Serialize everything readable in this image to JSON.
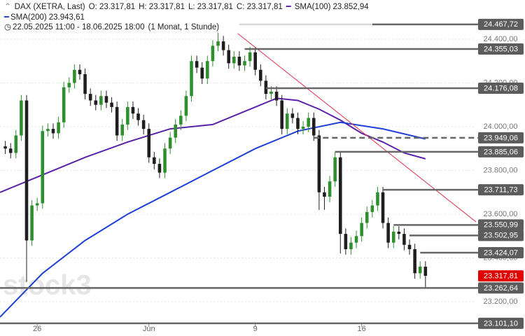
{
  "header": {
    "symbol": "DAX (XETRA, Last)",
    "ohlc": [
      "O: 23.317,81",
      "H: 23.317,81",
      "L: 23.317,81",
      "C: 23.317,81"
    ],
    "sma100": {
      "name": "SMA(100)",
      "value": "23.852,94"
    },
    "sma200": {
      "name": "SMA(200)",
      "value": "23.943,61"
    },
    "range": "22.05.2025 11:00 - 18.06.2025 18:00",
    "interval": "(1 Monat, 1 Stunde)"
  },
  "chart_data": {
    "type": "candlestick",
    "watermark": "stock3",
    "x": [
      0,
      1,
      2,
      3,
      4,
      5,
      6,
      7,
      8,
      9,
      10,
      11,
      12,
      13,
      14,
      15,
      16,
      17,
      18,
      19,
      20,
      21,
      22,
      23,
      24,
      25,
      26,
      27,
      28,
      29,
      30,
      31,
      32,
      33,
      34,
      35,
      36,
      37,
      38,
      39,
      40,
      41,
      42,
      43,
      44,
      45,
      46,
      47,
      48,
      49,
      50,
      51,
      52,
      53,
      54,
      55,
      56,
      57,
      58,
      59,
      60,
      61,
      62,
      63,
      64,
      65,
      66,
      67,
      68,
      69,
      70,
      71,
      72,
      73,
      74,
      75,
      76,
      77,
      78,
      79
    ],
    "open": [
      23910,
      23900,
      23880,
      23960,
      24120,
      23480,
      23640,
      23650,
      23980,
      23990,
      23970,
      24020,
      24180,
      24200,
      24260,
      24240,
      24150,
      24120,
      24100,
      24140,
      24110,
      24090,
      23960,
      24010,
      24090,
      24060,
      24030,
      23990,
      23860,
      23830,
      23790,
      23900,
      23950,
      24010,
      24050,
      24140,
      24300,
      24270,
      24220,
      24300,
      24370,
      24390,
      24350,
      24290,
      24320,
      24280,
      24300,
      24340,
      24260,
      24210,
      24150,
      24160,
      24120,
      23990,
      24060,
      24040,
      23990,
      24000,
      24040,
      23960,
      23700,
      23680,
      23750,
      23860,
      23510,
      23440,
      23470,
      23500,
      23560,
      23610,
      23640,
      23700,
      23560,
      23470,
      23520,
      23510,
      23460,
      23440,
      23330,
      23360
    ],
    "high": [
      23935,
      23925,
      23985,
      24145,
      24145,
      23665,
      23675,
      24005,
      24015,
      24015,
      24045,
      24205,
      24225,
      24285,
      24285,
      24265,
      24175,
      24145,
      24165,
      24165,
      24135,
      24115,
      24035,
      24115,
      24115,
      24085,
      24055,
      24015,
      23885,
      23855,
      23925,
      23975,
      24035,
      24075,
      24165,
      24325,
      24325,
      24295,
      24325,
      24395,
      24440,
      24415,
      24375,
      24345,
      24345,
      24325,
      24365,
      24365,
      24285,
      24235,
      24185,
      24185,
      24145,
      24085,
      24085,
      24065,
      24025,
      24065,
      24065,
      23985,
      23725,
      23775,
      23885,
      23885,
      23535,
      23495,
      23525,
      23585,
      23635,
      23665,
      23725,
      23725,
      23585,
      23545,
      23545,
      23535,
      23485,
      23465,
      23385,
      23385
    ],
    "low": [
      23875,
      23855,
      23855,
      23935,
      23290,
      23455,
      23615,
      23625,
      23955,
      23945,
      23945,
      23995,
      24155,
      24175,
      24215,
      24125,
      24095,
      24075,
      24075,
      24085,
      24065,
      23935,
      23935,
      23985,
      24035,
      24005,
      23965,
      23835,
      23805,
      23765,
      23765,
      23875,
      23925,
      23985,
      24025,
      24115,
      24245,
      24195,
      24195,
      24275,
      24345,
      24325,
      24265,
      24265,
      24255,
      24255,
      24275,
      24235,
      24185,
      24125,
      24125,
      24095,
      23965,
      23965,
      24015,
      23965,
      23965,
      23975,
      23935,
      23620,
      23620,
      23655,
      23725,
      23420,
      23415,
      23415,
      23445,
      23475,
      23535,
      23585,
      23615,
      23535,
      23445,
      23445,
      23485,
      23435,
      23415,
      23305,
      23305,
      23263
    ],
    "close": [
      23900,
      23880,
      23960,
      24120,
      23480,
      23640,
      23650,
      23980,
      23990,
      23970,
      24020,
      24180,
      24200,
      24260,
      24240,
      24150,
      24120,
      24100,
      24140,
      24110,
      24090,
      23960,
      24010,
      24090,
      24060,
      24030,
      23990,
      23860,
      23830,
      23790,
      23900,
      23950,
      24010,
      24050,
      24140,
      24300,
      24270,
      24220,
      24300,
      24370,
      24390,
      24350,
      24290,
      24320,
      24280,
      24300,
      24340,
      24260,
      24210,
      24150,
      24160,
      24120,
      23990,
      24060,
      24040,
      23990,
      24000,
      24040,
      23960,
      23700,
      23680,
      23750,
      23860,
      23510,
      23440,
      23470,
      23500,
      23560,
      23610,
      23640,
      23700,
      23560,
      23470,
      23520,
      23510,
      23460,
      23440,
      23330,
      23360,
      23318
    ],
    "up_color": "#2f8f2f",
    "down_color": "#1e1e1e",
    "series": [
      {
        "name": "SMA(100)",
        "color": "#5a22a8",
        "x": [
          -1,
          7,
          15,
          23,
          31,
          39,
          47,
          51,
          55,
          59,
          63,
          67,
          71,
          75,
          79
        ],
        "values": [
          23700,
          23780,
          23860,
          23930,
          23990,
          24010,
          24090,
          24130,
          24120,
          24080,
          24030,
          23970,
          23930,
          23880,
          23853
        ]
      },
      {
        "name": "SMA(200)",
        "color": "#1f3fd6",
        "x": [
          -1,
          7,
          15,
          23,
          31,
          39,
          47,
          55,
          63,
          71,
          79
        ],
        "values": [
          23130,
          23330,
          23480,
          23600,
          23700,
          23800,
          23900,
          23980,
          24020,
          23990,
          23944
        ]
      }
    ],
    "trendline": {
      "color": "#e0304a",
      "x": [
        43.7,
        88.5
      ],
      "values": [
        24426,
        23565
      ]
    },
    "levels": [
      {
        "value": 24467.72,
        "label": "24.467,72",
        "from": 44
      },
      {
        "value": 24355.03,
        "label": "24.355,03",
        "from": 45
      },
      {
        "value": 24176.08,
        "label": "24.176,08",
        "from": 49
      },
      {
        "value": 23949.06,
        "label": "23.949,06",
        "from": 58,
        "dashed": true
      },
      {
        "value": 23885.06,
        "label": "23.885,06",
        "from": 62
      },
      {
        "value": 23711.73,
        "label": "23.711,73",
        "from": 71
      },
      {
        "value": 23550.99,
        "label": "23.550,99",
        "from": 73
      },
      {
        "value": 23502.95,
        "label": "23.502,95",
        "from": 76
      },
      {
        "value": 23424.07,
        "label": "23.424,07",
        "from": 78
      },
      {
        "value": 23262.64,
        "label": "23.262,64",
        "from": -1
      },
      {
        "value": 23101.1,
        "label": "23.101,10",
        "from": -1
      },
      {
        "value": 23317.81,
        "label": "23.317,81",
        "current": true,
        "color": "#e00000"
      }
    ],
    "xlim": [
      -1,
      88.5
    ],
    "ylim": [
      23043.2,
      24579.2
    ],
    "xticks": [
      {
        "value": 6,
        "label": "26"
      },
      {
        "value": 27,
        "label": "Jun"
      },
      {
        "value": 47,
        "label": "9"
      },
      {
        "value": 67,
        "label": "16"
      }
    ],
    "yticks": [
      {
        "value": 23200,
        "label": "23.200,00"
      },
      {
        "value": 23400,
        "label": "23.400,00"
      },
      {
        "value": 23600,
        "label": "23.600,00"
      },
      {
        "value": 23800,
        "label": "23.800,00"
      },
      {
        "value": 24000,
        "label": "24.000,00"
      },
      {
        "value": 24200,
        "label": "24.200,00"
      },
      {
        "value": 24400,
        "label": "24.400,00"
      }
    ],
    "grid": true
  }
}
